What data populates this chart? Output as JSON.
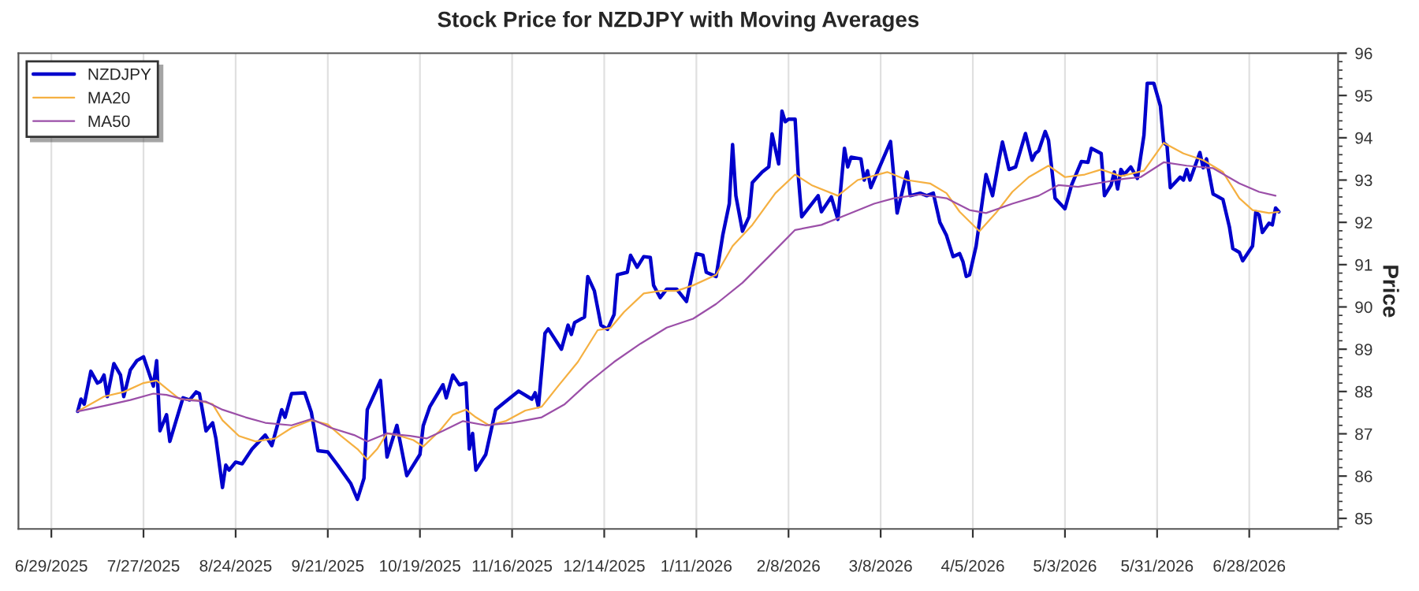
{
  "chart_data": {
    "type": "line",
    "title": "Stock Price for NZDJPY with Moving Averages",
    "ylabel": "Price",
    "xlim": [
      "2025-06-19",
      "2026-07-25"
    ],
    "xticks": [
      {
        "value": "2025-06-29",
        "label": "6/29/2025"
      },
      {
        "value": "2025-07-27",
        "label": "7/27/2025"
      },
      {
        "value": "2025-08-24",
        "label": "8/24/2025"
      },
      {
        "value": "2025-09-21",
        "label": "9/21/2025"
      },
      {
        "value": "2025-10-19",
        "label": "10/19/2025"
      },
      {
        "value": "2025-11-16",
        "label": "11/16/2025"
      },
      {
        "value": "2025-12-14",
        "label": "12/14/2025"
      },
      {
        "value": "2026-01-11",
        "label": "1/11/2026"
      },
      {
        "value": "2026-02-08",
        "label": "2/8/2026"
      },
      {
        "value": "2026-03-08",
        "label": "3/8/2026"
      },
      {
        "value": "2026-04-05",
        "label": "4/5/2026"
      },
      {
        "value": "2026-05-03",
        "label": "5/3/2026"
      },
      {
        "value": "2026-05-31",
        "label": "5/31/2026"
      },
      {
        "value": "2026-06-28",
        "label": "6/28/2026"
      }
    ],
    "ylim": [
      84.75,
      96
    ],
    "yticks": [
      85,
      86,
      87,
      88,
      89,
      90,
      91,
      92,
      93,
      94,
      95,
      96
    ],
    "grid": "x",
    "legend": "top left",
    "marker": "none",
    "line_style": "solid",
    "series": [
      {
        "name": "NZDJPY",
        "color": "#0000cc",
        "x": [
          "2025-07-07",
          "2025-07-08",
          "2025-07-09",
          "2025-07-11",
          "2025-07-13",
          "2025-07-14",
          "2025-07-15",
          "2025-07-16",
          "2025-07-18",
          "2025-07-20",
          "2025-07-21",
          "2025-07-23",
          "2025-07-25",
          "2025-07-27",
          "2025-07-30",
          "2025-07-31",
          "2025-08-01",
          "2025-08-03",
          "2025-08-04",
          "2025-08-08",
          "2025-08-10",
          "2025-08-12",
          "2025-08-13",
          "2025-08-15",
          "2025-08-17",
          "2025-08-18",
          "2025-08-20",
          "2025-08-21",
          "2025-08-22",
          "2025-08-24",
          "2025-08-26",
          "2025-08-29",
          "2025-09-02",
          "2025-09-04",
          "2025-09-07",
          "2025-09-08",
          "2025-09-10",
          "2025-09-14",
          "2025-09-16",
          "2025-09-18",
          "2025-09-21",
          "2025-09-24",
          "2025-09-28",
          "2025-09-30",
          "2025-10-02",
          "2025-10-03",
          "2025-10-07",
          "2025-10-09",
          "2025-10-12",
          "2025-10-15",
          "2025-10-19",
          "2025-10-20",
          "2025-10-22",
          "2025-10-26",
          "2025-10-27",
          "2025-10-29",
          "2025-10-31",
          "2025-11-02",
          "2025-11-03",
          "2025-11-04",
          "2025-11-05",
          "2025-11-08",
          "2025-11-11",
          "2025-11-13",
          "2025-11-18",
          "2025-11-22",
          "2025-11-23",
          "2025-11-24",
          "2025-11-26",
          "2025-11-27",
          "2025-12-01",
          "2025-12-03",
          "2025-12-04",
          "2025-12-05",
          "2025-12-08",
          "2025-12-09",
          "2025-12-11",
          "2025-12-13",
          "2025-12-15",
          "2025-12-17",
          "2025-12-18",
          "2025-12-21",
          "2025-12-22",
          "2025-12-24",
          "2025-12-26",
          "2025-12-28",
          "2025-12-29",
          "2025-12-31",
          "2026-01-02",
          "2026-01-05",
          "2026-01-08",
          "2026-01-11",
          "2026-01-13",
          "2026-01-14",
          "2026-01-17",
          "2026-01-19",
          "2026-01-21",
          "2026-01-22",
          "2026-01-23",
          "2026-01-25",
          "2026-01-27",
          "2026-01-28",
          "2026-01-31",
          "2026-02-02",
          "2026-02-03",
          "2026-02-05",
          "2026-02-06",
          "2026-02-07",
          "2026-02-08",
          "2026-02-10",
          "2026-02-11",
          "2026-02-12",
          "2026-02-17",
          "2026-02-18",
          "2026-02-21",
          "2026-02-23",
          "2026-02-25",
          "2026-02-26",
          "2026-02-27",
          "2026-03-02",
          "2026-03-03",
          "2026-03-04",
          "2026-03-05",
          "2026-03-07",
          "2026-03-11",
          "2026-03-13",
          "2026-03-16",
          "2026-03-17",
          "2026-03-20",
          "2026-03-22",
          "2026-03-24",
          "2026-03-26",
          "2026-03-28",
          "2026-03-30",
          "2026-04-01",
          "2026-04-02",
          "2026-04-03",
          "2026-04-04",
          "2026-04-06",
          "2026-04-09",
          "2026-04-11",
          "2026-04-13",
          "2026-04-14",
          "2026-04-16",
          "2026-04-18",
          "2026-04-21",
          "2026-04-23",
          "2026-04-24",
          "2026-04-25",
          "2026-04-27",
          "2026-04-28",
          "2026-04-30",
          "2026-05-03",
          "2026-05-05",
          "2026-05-08",
          "2026-05-10",
          "2026-05-11",
          "2026-05-14",
          "2026-05-15",
          "2026-05-17",
          "2026-05-18",
          "2026-05-19",
          "2026-05-20",
          "2026-05-21",
          "2026-05-23",
          "2026-05-25",
          "2026-05-27",
          "2026-05-28",
          "2026-05-30",
          "2026-06-01",
          "2026-06-02",
          "2026-06-03",
          "2026-06-04",
          "2026-06-07",
          "2026-06-08",
          "2026-06-09",
          "2026-06-10",
          "2026-06-13",
          "2026-06-14",
          "2026-06-15",
          "2026-06-17",
          "2026-06-18",
          "2026-06-20",
          "2026-06-22",
          "2026-06-23",
          "2026-06-25",
          "2026-06-26",
          "2026-06-29",
          "2026-06-30",
          "2026-07-01",
          "2026-07-02",
          "2026-07-04",
          "2026-07-05",
          "2026-07-06",
          "2026-07-07"
        ],
        "values": [
          87.53,
          87.82,
          87.7,
          88.48,
          88.2,
          88.24,
          88.39,
          87.88,
          88.66,
          88.39,
          87.88,
          88.51,
          88.73,
          88.82,
          88.13,
          88.73,
          87.07,
          87.45,
          86.82,
          87.85,
          87.8,
          87.99,
          87.95,
          87.07,
          87.26,
          86.89,
          85.73,
          86.26,
          86.14,
          86.33,
          86.29,
          86.64,
          86.97,
          86.72,
          87.57,
          87.39,
          87.95,
          87.97,
          87.51,
          86.6,
          86.57,
          86.26,
          85.82,
          85.45,
          85.95,
          87.57,
          88.26,
          86.45,
          87.2,
          86.01,
          86.51,
          87.19,
          87.64,
          88.16,
          87.85,
          88.39,
          88.16,
          88.2,
          86.64,
          87.01,
          86.14,
          86.51,
          87.57,
          87.7,
          88.01,
          87.82,
          87.97,
          87.64,
          89.38,
          89.48,
          89.0,
          89.57,
          89.35,
          89.63,
          89.76,
          90.72,
          90.38,
          89.57,
          89.47,
          89.82,
          90.76,
          90.82,
          91.22,
          90.94,
          91.19,
          91.17,
          90.51,
          90.22,
          90.42,
          90.42,
          90.13,
          91.26,
          91.22,
          90.82,
          90.72,
          91.69,
          92.44,
          93.84,
          92.63,
          91.79,
          92.13,
          92.94,
          93.19,
          93.31,
          94.09,
          93.38,
          94.63,
          94.38,
          94.44,
          94.44,
          93.07,
          92.13,
          92.63,
          92.25,
          92.6,
          92.07,
          93.75,
          93.31,
          93.54,
          93.5,
          93.0,
          93.22,
          92.82,
          93.19,
          93.91,
          92.22,
          93.19,
          92.63,
          92.69,
          92.63,
          92.69,
          92.0,
          91.69,
          91.19,
          91.26,
          91.07,
          90.72,
          90.76,
          91.44,
          93.13,
          92.63,
          93.5,
          93.9,
          93.25,
          93.31,
          94.1,
          93.47,
          93.63,
          93.69,
          94.15,
          93.94,
          92.57,
          92.32,
          92.88,
          93.44,
          93.42,
          93.75,
          93.63,
          92.63,
          92.88,
          93.19,
          92.79,
          93.25,
          93.13,
          93.31,
          93.04,
          94.06,
          95.29,
          95.29,
          94.75,
          93.88,
          93.82,
          92.82,
          93.07,
          93.0,
          93.25,
          93.0,
          93.65,
          93.29,
          93.5,
          92.67,
          92.63,
          92.54,
          91.88,
          91.38,
          91.29,
          91.09,
          91.44,
          92.25,
          92.17,
          91.76,
          91.98,
          91.94,
          92.34,
          92.25
        ]
      },
      {
        "name": "MA20",
        "color": "#f5b041",
        "x": [
          "2025-07-07",
          "2025-07-15",
          "2025-07-21",
          "2025-07-27",
          "2025-07-31",
          "2025-08-03",
          "2025-08-07",
          "2025-08-12",
          "2025-08-17",
          "2025-08-20",
          "2025-08-25",
          "2025-08-30",
          "2025-09-05",
          "2025-09-10",
          "2025-09-16",
          "2025-09-21",
          "2025-09-25",
          "2025-09-30",
          "2025-10-03",
          "2025-10-06",
          "2025-10-09",
          "2025-10-13",
          "2025-10-17",
          "2025-10-20",
          "2025-10-25",
          "2025-10-29",
          "2025-11-02",
          "2025-11-05",
          "2025-11-09",
          "2025-11-14",
          "2025-11-20",
          "2025-11-25",
          "2025-11-30",
          "2025-12-06",
          "2025-12-12",
          "2025-12-16",
          "2025-12-20",
          "2025-12-26",
          "2025-12-31",
          "2026-01-05",
          "2026-01-10",
          "2026-01-17",
          "2026-01-22",
          "2026-01-28",
          "2026-02-04",
          "2026-02-10",
          "2026-02-15",
          "2026-02-23",
          "2026-03-01",
          "2026-03-10",
          "2026-03-16",
          "2026-03-23",
          "2026-03-28",
          "2026-04-01",
          "2026-04-07",
          "2026-04-12",
          "2026-04-17",
          "2026-04-22",
          "2026-04-28",
          "2026-05-03",
          "2026-05-09",
          "2026-05-14",
          "2026-05-20",
          "2026-05-27",
          "2026-06-02",
          "2026-06-08",
          "2026-06-14",
          "2026-06-20",
          "2026-06-25",
          "2026-06-29",
          "2026-07-04",
          "2026-07-07"
        ],
        "values": [
          87.53,
          87.88,
          87.99,
          88.2,
          88.26,
          88.07,
          87.82,
          87.8,
          87.7,
          87.32,
          86.95,
          86.82,
          86.89,
          87.14,
          87.32,
          87.22,
          86.95,
          86.64,
          86.39,
          86.64,
          87.01,
          86.95,
          86.85,
          86.7,
          87.07,
          87.45,
          87.57,
          87.39,
          87.2,
          87.3,
          87.55,
          87.64,
          88.13,
          88.7,
          89.45,
          89.51,
          89.88,
          90.32,
          90.38,
          90.38,
          90.51,
          90.76,
          91.44,
          91.94,
          92.69,
          93.13,
          92.88,
          92.63,
          93.0,
          93.19,
          93.0,
          92.92,
          92.69,
          92.25,
          91.79,
          92.22,
          92.72,
          93.07,
          93.34,
          93.07,
          93.13,
          93.25,
          93.09,
          93.22,
          93.88,
          93.63,
          93.47,
          93.19,
          92.57,
          92.29,
          92.22,
          92.25
        ]
      },
      {
        "name": "MA50",
        "color": "#9b4fa8",
        "x": [
          "2025-07-07",
          "2025-07-15",
          "2025-07-23",
          "2025-07-30",
          "2025-08-03",
          "2025-08-09",
          "2025-08-15",
          "2025-08-20",
          "2025-08-27",
          "2025-09-02",
          "2025-09-10",
          "2025-09-16",
          "2025-09-22",
          "2025-09-29",
          "2025-10-03",
          "2025-10-09",
          "2025-10-16",
          "2025-10-21",
          "2025-10-26",
          "2025-11-01",
          "2025-11-08",
          "2025-11-16",
          "2025-11-25",
          "2025-12-02",
          "2025-12-09",
          "2025-12-17",
          "2025-12-25",
          "2026-01-02",
          "2026-01-10",
          "2026-01-17",
          "2026-01-25",
          "2026-02-02",
          "2026-02-10",
          "2026-02-18",
          "2026-02-26",
          "2026-03-06",
          "2026-03-12",
          "2026-03-20",
          "2026-03-28",
          "2026-04-04",
          "2026-04-09",
          "2026-04-17",
          "2026-04-25",
          "2026-05-01",
          "2026-05-07",
          "2026-05-14",
          "2026-05-21",
          "2026-05-26",
          "2026-06-02",
          "2026-06-09",
          "2026-06-17",
          "2026-06-25",
          "2026-07-01",
          "2026-07-06"
        ],
        "values": [
          87.53,
          87.66,
          87.8,
          87.95,
          87.92,
          87.8,
          87.76,
          87.57,
          87.39,
          87.26,
          87.2,
          87.35,
          87.14,
          86.97,
          86.82,
          87.01,
          86.95,
          86.89,
          87.07,
          87.3,
          87.2,
          87.26,
          87.39,
          87.7,
          88.2,
          88.7,
          89.13,
          89.51,
          89.72,
          90.07,
          90.57,
          91.19,
          91.82,
          91.94,
          92.19,
          92.44,
          92.57,
          92.66,
          92.57,
          92.29,
          92.22,
          92.44,
          92.63,
          92.88,
          92.84,
          92.94,
          93.03,
          93.07,
          93.42,
          93.34,
          93.28,
          92.92,
          92.72,
          92.63
        ]
      }
    ]
  }
}
